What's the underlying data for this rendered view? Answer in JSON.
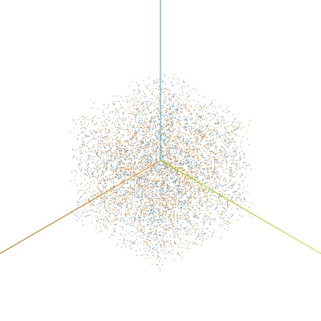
{
  "scene": {
    "type": "3d-point-cloud-viewer",
    "background": "#ffffff",
    "point_count": 6000,
    "point_colors": [
      "#ff8800",
      "#4a9fd8",
      "#ee7711",
      "#3f8fcf"
    ],
    "axes": [
      {
        "name": "x-axis",
        "color": "#ff8800",
        "gradient_to": "#cc6600"
      },
      {
        "name": "y-axis",
        "color": "#33aacc",
        "gradient_to": "#3399cc"
      },
      {
        "name": "z-axis",
        "color": "#aadd00",
        "gradient_to": "#ccdd33"
      }
    ]
  }
}
